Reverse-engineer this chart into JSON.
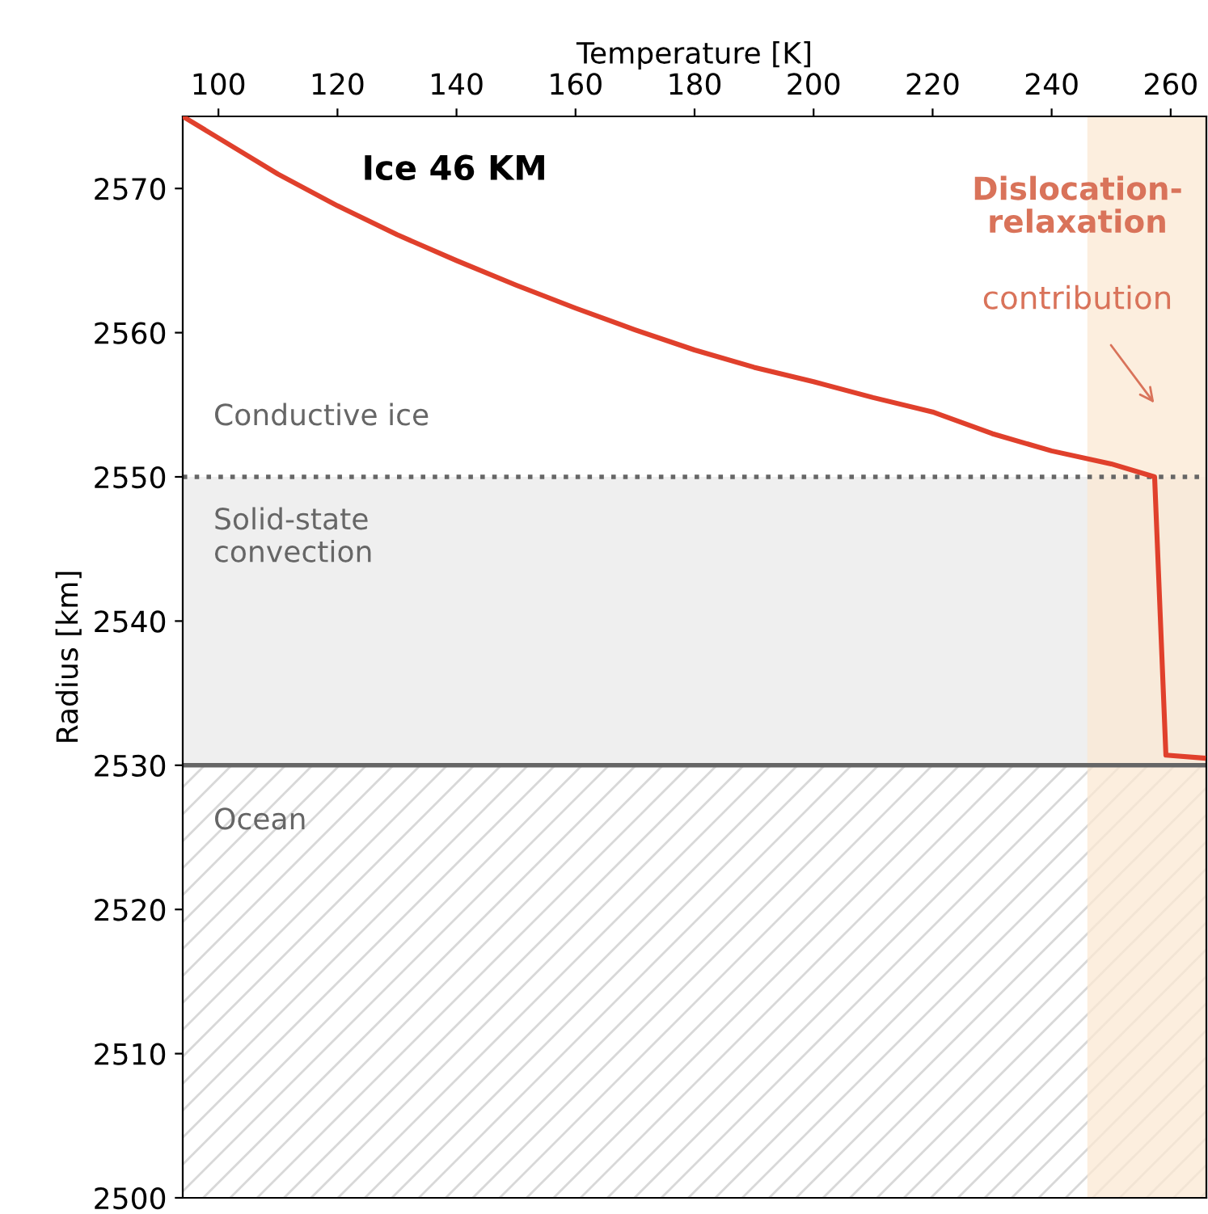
{
  "chart_data": {
    "type": "line",
    "xlabel": "Temperature [K]",
    "ylabel": "Radius [km]",
    "xlim": [
      94,
      266
    ],
    "xticks": [
      100,
      120,
      140,
      160,
      180,
      200,
      220,
      240,
      260
    ],
    "ylim": [
      2500,
      2575
    ],
    "yticks": [
      2500,
      2510,
      2520,
      2530,
      2540,
      2550,
      2560,
      2570
    ],
    "series": [
      {
        "color": "#e0402c",
        "x": [
          94,
          100,
          110,
          120,
          130,
          140,
          150,
          160,
          170,
          180,
          190,
          200,
          210,
          220,
          230,
          240,
          250,
          257.3,
          259.2,
          265.5
        ],
        "values": [
          2575,
          2573.5,
          2571,
          2568.8,
          2566.8,
          2565,
          2563.3,
          2561.7,
          2560.2,
          2558.8,
          2557.6,
          2556.6,
          2555.5,
          2554.5,
          2553,
          2551.8,
          2550.9,
          2550,
          2530.7,
          2530.5
        ]
      }
    ],
    "bands": [
      {
        "axis": "y",
        "from": 2530,
        "to": 2550,
        "label": "Solid-state\nconvection",
        "color": "#efefef"
      },
      {
        "axis": "y",
        "from": 2500,
        "to": 2530,
        "label": "Ocean",
        "color": "#ffffff"
      },
      {
        "axis": "x",
        "from": 246,
        "to": 266,
        "color": "#fbe8d3"
      }
    ],
    "ref_lines": [
      {
        "axis": "y",
        "value": 2550,
        "color": "#666666",
        "line_style": "dotted"
      },
      {
        "axis": "y",
        "value": 2530,
        "color": "#666666",
        "line_style": "solid"
      }
    ],
    "annotations": [
      "Ice 46 KM",
      "Conductive ice",
      "Dislocation-\nrelaxation",
      "contribution"
    ],
    "grid": false,
    "legend": false
  }
}
